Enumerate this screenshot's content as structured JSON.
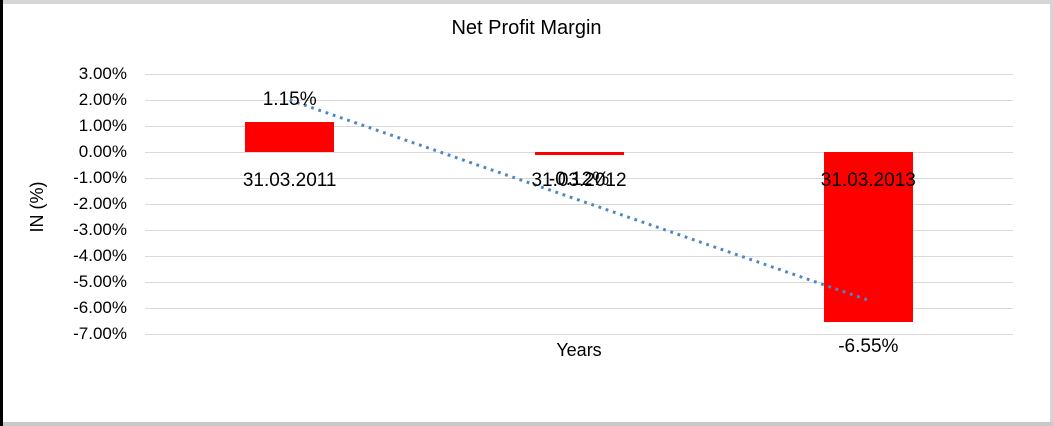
{
  "chart_data": {
    "type": "bar",
    "title": "Net Profit Margin",
    "xlabel": "Years",
    "ylabel": "IN (%)",
    "categories": [
      "31.03.2011",
      "31.03.2012",
      "31.03.2013"
    ],
    "values": [
      1.15,
      -0.12,
      -6.55
    ],
    "data_labels": [
      "1.15%",
      "-0.12%",
      "-6.55%"
    ],
    "ylim": [
      -7,
      3
    ],
    "ytick_step": 1,
    "ytick_labels": [
      "3.00%",
      "2.00%",
      "1.00%",
      "0.00%",
      "-1.00%",
      "-2.00%",
      "-3.00%",
      "-4.00%",
      "-5.00%",
      "-6.00%",
      "-7.00%"
    ],
    "grid": true,
    "legend": "none",
    "bar_color": "#FF0000",
    "gridline_color": "#D9D9D9",
    "trendline": {
      "type": "linear",
      "style": "dotted",
      "color": "#4E86C4",
      "start_value": 2.0,
      "end_value": -5.7
    }
  }
}
